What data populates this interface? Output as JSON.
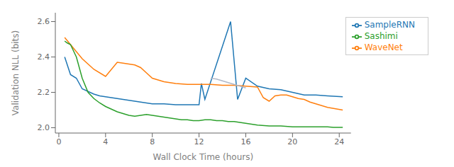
{
  "chart_data": {
    "type": "line",
    "xlabel": "Wall Clock Time (hours)",
    "ylabel": "Validation NLL (bits)",
    "xlim": [
      -0.3,
      25.0
    ],
    "ylim": [
      1.97,
      2.65
    ],
    "xticks": [
      0,
      4,
      8,
      12,
      16,
      20,
      24
    ],
    "yticks": [
      {
        "value": 2.0,
        "label": "2.0"
      },
      2.2,
      2.4,
      2.6
    ],
    "grid": false,
    "legend": "upper right",
    "series": [
      {
        "name": "SampleRNN",
        "color": "#1f77b4",
        "x": [
          0.5,
          1.0,
          1.5,
          2.0,
          3.0,
          3.5,
          4.0,
          5.0,
          6.0,
          7.0,
          8.0,
          9.0,
          10.0,
          11.0,
          12.0,
          12.2,
          12.5,
          14.7,
          15.3,
          16.0,
          17.0,
          18.0,
          19.0,
          20.0,
          21.0,
          22.0,
          23.0,
          24.3
        ],
        "values": [
          2.4,
          2.3,
          2.28,
          2.22,
          2.19,
          2.18,
          2.175,
          2.165,
          2.155,
          2.145,
          2.135,
          2.135,
          2.13,
          2.13,
          2.13,
          2.25,
          2.16,
          2.6,
          2.16,
          2.28,
          2.235,
          2.22,
          2.215,
          2.2,
          2.185,
          2.185,
          2.18,
          2.175
        ]
      },
      {
        "name": "WaveNet",
        "color": "#ff7f0e",
        "x": [
          0.5,
          1.0,
          1.5,
          2.0,
          2.5,
          3.0,
          4.0,
          5.0,
          5.5,
          6.0,
          6.5,
          7.0,
          7.5,
          8.0,
          9.0,
          10.0,
          11.0,
          12.0,
          13.0,
          14.0,
          15.0,
          16.0,
          17.0,
          17.5,
          18.0,
          18.5,
          19.0,
          19.5,
          20.0,
          20.5,
          21.0,
          21.5,
          22.0,
          23.0,
          24.3
        ],
        "values": [
          2.51,
          2.47,
          2.43,
          2.39,
          2.36,
          2.33,
          2.29,
          2.37,
          2.365,
          2.36,
          2.355,
          2.34,
          2.31,
          2.28,
          2.26,
          2.25,
          2.245,
          2.245,
          2.245,
          2.24,
          2.24,
          2.235,
          2.23,
          2.17,
          2.15,
          2.18,
          2.185,
          2.185,
          2.175,
          2.165,
          2.16,
          2.145,
          2.135,
          2.115,
          2.1
        ]
      },
      {
        "name": "Sashimi",
        "color": "#2ca02c",
        "x": [
          0.5,
          0.7,
          1.0,
          1.5,
          2.0,
          2.5,
          3.0,
          3.5,
          4.0,
          4.5,
          5.0,
          5.5,
          6.0,
          6.5,
          7.0,
          7.5,
          8.0,
          8.5,
          9.0,
          9.5,
          10.0,
          10.5,
          11.0,
          11.5,
          12.0,
          12.5,
          13.0,
          13.5,
          14.0,
          14.5,
          15.0,
          15.5,
          16.0,
          17.0,
          18.0,
          19.0,
          20.0,
          21.0,
          22.0,
          23.0,
          23.5,
          24.3
        ],
        "values": [
          2.49,
          2.48,
          2.47,
          2.4,
          2.28,
          2.2,
          2.165,
          2.14,
          2.12,
          2.105,
          2.09,
          2.08,
          2.07,
          2.065,
          2.07,
          2.075,
          2.07,
          2.065,
          2.06,
          2.055,
          2.05,
          2.045,
          2.045,
          2.04,
          2.04,
          2.045,
          2.045,
          2.04,
          2.04,
          2.035,
          2.035,
          2.03,
          2.025,
          2.015,
          2.01,
          2.01,
          2.005,
          2.005,
          2.005,
          2.005,
          2.002,
          2.002
        ]
      },
      {
        "color": "#b0b8c8",
        "x": [
          13.0,
          13.5,
          14.0,
          14.5,
          15.0,
          15.5,
          16.0
        ],
        "values": [
          2.28,
          2.275,
          2.265,
          2.255,
          2.245,
          2.235,
          2.225
        ]
      }
    ]
  }
}
